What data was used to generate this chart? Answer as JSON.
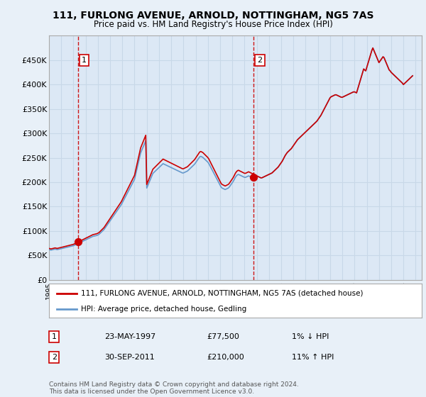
{
  "title": "111, FURLONG AVENUE, ARNOLD, NOTTINGHAM, NG5 7AS",
  "subtitle": "Price paid vs. HM Land Registry's House Price Index (HPI)",
  "background_color": "#e8f0f8",
  "plot_bg_color": "#dce8f5",
  "grid_color": "#c8d8e8",
  "hpi_line_color": "#6699cc",
  "price_line_color": "#cc0000",
  "marker_color": "#cc0000",
  "vline_color": "#cc0000",
  "sale1_year": 1997.38,
  "sale2_year": 2011.75,
  "sale1_price": 77500,
  "sale2_price": 210000,
  "ylim_min": 0,
  "ylim_max": 500000,
  "xlim_min": 1995,
  "xlim_max": 2025.5,
  "ytick_labels": [
    "£0",
    "£50K",
    "£100K",
    "£150K",
    "£200K",
    "£250K",
    "£300K",
    "£350K",
    "£400K",
    "£450K"
  ],
  "ytick_values": [
    0,
    50000,
    100000,
    150000,
    200000,
    250000,
    300000,
    350000,
    400000,
    450000
  ],
  "legend_line1": "111, FURLONG AVENUE, ARNOLD, NOTTINGHAM, NG5 7AS (detached house)",
  "legend_line2": "HPI: Average price, detached house, Gedling",
  "annotation1_label": "1",
  "annotation1_date": "23-MAY-1997",
  "annotation1_price": "£77,500",
  "annotation1_hpi": "1% ↓ HPI",
  "annotation2_label": "2",
  "annotation2_date": "30-SEP-2011",
  "annotation2_price": "£210,000",
  "annotation2_hpi": "11% ↑ HPI",
  "footer": "Contains HM Land Registry data © Crown copyright and database right 2024.\nThis data is licensed under the Open Government Licence v3.0.",
  "hpi_data_years": [
    1995.0,
    1995.083,
    1995.167,
    1995.25,
    1995.333,
    1995.417,
    1995.5,
    1995.583,
    1995.667,
    1995.75,
    1995.833,
    1995.917,
    1996.0,
    1996.083,
    1996.167,
    1996.25,
    1996.333,
    1996.417,
    1996.5,
    1996.583,
    1996.667,
    1996.75,
    1996.833,
    1996.917,
    1997.0,
    1997.083,
    1997.167,
    1997.25,
    1997.333,
    1997.417,
    1997.5,
    1997.583,
    1997.667,
    1997.75,
    1997.833,
    1997.917,
    1998.0,
    1998.083,
    1998.167,
    1998.25,
    1998.333,
    1998.417,
    1998.5,
    1998.583,
    1998.667,
    1998.75,
    1998.833,
    1998.917,
    1999.0,
    1999.083,
    1999.167,
    1999.25,
    1999.333,
    1999.417,
    1999.5,
    1999.583,
    1999.667,
    1999.75,
    1999.833,
    1999.917,
    2000.0,
    2000.083,
    2000.167,
    2000.25,
    2000.333,
    2000.417,
    2000.5,
    2000.583,
    2000.667,
    2000.75,
    2000.833,
    2000.917,
    2001.0,
    2001.083,
    2001.167,
    2001.25,
    2001.333,
    2001.417,
    2001.5,
    2001.583,
    2001.667,
    2001.75,
    2001.833,
    2001.917,
    2002.0,
    2002.083,
    2002.167,
    2002.25,
    2002.333,
    2002.417,
    2002.5,
    2002.583,
    2002.667,
    2002.75,
    2002.833,
    2002.917,
    2003.0,
    2003.083,
    2003.167,
    2003.25,
    2003.333,
    2003.417,
    2003.5,
    2003.583,
    2003.667,
    2003.75,
    2003.833,
    2003.917,
    2004.0,
    2004.083,
    2004.167,
    2004.25,
    2004.333,
    2004.417,
    2004.5,
    2004.583,
    2004.667,
    2004.75,
    2004.833,
    2004.917,
    2005.0,
    2005.083,
    2005.167,
    2005.25,
    2005.333,
    2005.417,
    2005.5,
    2005.583,
    2005.667,
    2005.75,
    2005.833,
    2005.917,
    2006.0,
    2006.083,
    2006.167,
    2006.25,
    2006.333,
    2006.417,
    2006.5,
    2006.583,
    2006.667,
    2006.75,
    2006.833,
    2006.917,
    2007.0,
    2007.083,
    2007.167,
    2007.25,
    2007.333,
    2007.417,
    2007.5,
    2007.583,
    2007.667,
    2007.75,
    2007.833,
    2007.917,
    2008.0,
    2008.083,
    2008.167,
    2008.25,
    2008.333,
    2008.417,
    2008.5,
    2008.583,
    2008.667,
    2008.75,
    2008.833,
    2008.917,
    2009.0,
    2009.083,
    2009.167,
    2009.25,
    2009.333,
    2009.417,
    2009.5,
    2009.583,
    2009.667,
    2009.75,
    2009.833,
    2009.917,
    2010.0,
    2010.083,
    2010.167,
    2010.25,
    2010.333,
    2010.417,
    2010.5,
    2010.583,
    2010.667,
    2010.75,
    2010.833,
    2010.917,
    2011.0,
    2011.083,
    2011.167,
    2011.25,
    2011.333,
    2011.417,
    2011.5,
    2011.583,
    2011.667,
    2011.75,
    2011.833,
    2011.917,
    2012.0,
    2012.083,
    2012.167,
    2012.25,
    2012.333,
    2012.417,
    2012.5,
    2012.583,
    2012.667,
    2012.75,
    2012.833,
    2012.917,
    2013.0,
    2013.083,
    2013.167,
    2013.25,
    2013.333,
    2013.417,
    2013.5,
    2013.583,
    2013.667,
    2013.75,
    2013.833,
    2013.917,
    2014.0,
    2014.083,
    2014.167,
    2014.25,
    2014.333,
    2014.417,
    2014.5,
    2014.583,
    2014.667,
    2014.75,
    2014.833,
    2014.917,
    2015.0,
    2015.083,
    2015.167,
    2015.25,
    2015.333,
    2015.417,
    2015.5,
    2015.583,
    2015.667,
    2015.75,
    2015.833,
    2015.917,
    2016.0,
    2016.083,
    2016.167,
    2016.25,
    2016.333,
    2016.417,
    2016.5,
    2016.583,
    2016.667,
    2016.75,
    2016.833,
    2016.917,
    2017.0,
    2017.083,
    2017.167,
    2017.25,
    2017.333,
    2017.417,
    2017.5,
    2017.583,
    2017.667,
    2017.75,
    2017.833,
    2017.917,
    2018.0,
    2018.083,
    2018.167,
    2018.25,
    2018.333,
    2018.417,
    2018.5,
    2018.583,
    2018.667,
    2018.75,
    2018.833,
    2018.917,
    2019.0,
    2019.083,
    2019.167,
    2019.25,
    2019.333,
    2019.417,
    2019.5,
    2019.583,
    2019.667,
    2019.75,
    2019.833,
    2019.917,
    2020.0,
    2020.083,
    2020.167,
    2020.25,
    2020.333,
    2020.417,
    2020.5,
    2020.583,
    2020.667,
    2020.75,
    2020.833,
    2020.917,
    2021.0,
    2021.083,
    2021.167,
    2021.25,
    2021.333,
    2021.417,
    2021.5,
    2021.583,
    2021.667,
    2021.75,
    2021.833,
    2021.917,
    2022.0,
    2022.083,
    2022.167,
    2022.25,
    2022.333,
    2022.417,
    2022.5,
    2022.583,
    2022.667,
    2022.75,
    2022.833,
    2022.917,
    2023.0,
    2023.083,
    2023.167,
    2023.25,
    2023.333,
    2023.417,
    2023.5,
    2023.583,
    2023.667,
    2023.75,
    2023.833,
    2023.917,
    2024.0,
    2024.083,
    2024.167,
    2024.25,
    2024.333,
    2024.417,
    2024.5,
    2024.583,
    2024.667,
    2024.75
  ],
  "hpi_data_values": [
    62000,
    61500,
    61000,
    61500,
    62000,
    62500,
    63000,
    62500,
    62000,
    62500,
    63000,
    63500,
    64000,
    64500,
    65000,
    65500,
    66000,
    66500,
    67000,
    67500,
    68000,
    68500,
    69000,
    69500,
    70000,
    71000,
    72000,
    73000,
    74000,
    75000,
    76000,
    77000,
    78000,
    79000,
    80000,
    81000,
    82000,
    83000,
    84000,
    85000,
    86000,
    87000,
    88000,
    89000,
    89500,
    90000,
    90500,
    91000,
    92000,
    93000,
    95000,
    97000,
    99000,
    101000,
    103000,
    106000,
    109000,
    112000,
    115000,
    118000,
    121000,
    124000,
    127000,
    130000,
    133000,
    136000,
    139000,
    142000,
    145000,
    148000,
    151000,
    154000,
    158000,
    162000,
    166000,
    170000,
    174000,
    178000,
    182000,
    186000,
    190000,
    194000,
    198000,
    202000,
    206000,
    215000,
    224000,
    233000,
    242000,
    251000,
    260000,
    265000,
    270000,
    275000,
    280000,
    285000,
    188000,
    193000,
    198000,
    203000,
    208000,
    213000,
    218000,
    220000,
    222000,
    224000,
    226000,
    228000,
    230000,
    232000,
    234000,
    236000,
    238000,
    237000,
    236000,
    235000,
    234000,
    233000,
    232000,
    231000,
    230000,
    229000,
    228000,
    227000,
    226000,
    225000,
    224000,
    223000,
    222000,
    221000,
    220000,
    219000,
    219000,
    220000,
    221000,
    222000,
    223000,
    225000,
    227000,
    229000,
    231000,
    233000,
    235000,
    237000,
    240000,
    243000,
    246000,
    249000,
    252000,
    253000,
    252000,
    251000,
    249000,
    247000,
    245000,
    243000,
    241000,
    238000,
    234000,
    230000,
    226000,
    222000,
    218000,
    214000,
    210000,
    206000,
    202000,
    198000,
    194000,
    190000,
    188000,
    187000,
    186000,
    185000,
    186000,
    187000,
    188000,
    190000,
    193000,
    196000,
    199000,
    202000,
    206000,
    210000,
    213000,
    215000,
    216000,
    215000,
    214000,
    213000,
    212000,
    211000,
    210000,
    210000,
    211000,
    212000,
    213000,
    212000,
    211000,
    210000,
    209000,
    210000,
    211000,
    212000,
    213000,
    212000,
    211000,
    210000,
    209000,
    209000,
    210000,
    211000,
    212000,
    213000,
    214000,
    215000,
    216000,
    217000,
    218000,
    219000,
    221000,
    223000,
    225000,
    227000,
    229000,
    231000,
    234000,
    237000,
    240000,
    243000,
    247000,
    251000,
    255000,
    258000,
    261000,
    263000,
    265000,
    267000,
    269000,
    272000,
    275000,
    278000,
    281000,
    284000,
    287000,
    289000,
    291000,
    293000,
    295000,
    297000,
    299000,
    301000,
    303000,
    305000,
    307000,
    309000,
    311000,
    313000,
    315000,
    317000,
    319000,
    321000,
    323000,
    325000,
    328000,
    331000,
    334000,
    337000,
    341000,
    345000,
    349000,
    353000,
    357000,
    361000,
    365000,
    369000,
    373000,
    375000,
    376000,
    377000,
    378000,
    379000,
    379000,
    378000,
    377000,
    376000,
    375000,
    374000,
    374000,
    375000,
    376000,
    377000,
    378000,
    379000,
    380000,
    381000,
    382000,
    383000,
    384000,
    385000,
    385000,
    384000,
    383000,
    390000,
    397000,
    404000,
    411000,
    418000,
    425000,
    432000,
    430000,
    428000,
    435000,
    442000,
    449000,
    456000,
    463000,
    470000,
    475000,
    470000,
    465000,
    460000,
    455000,
    450000,
    445000,
    448000,
    451000,
    454000,
    457000,
    455000,
    450000,
    445000,
    440000,
    435000,
    430000,
    428000,
    425000,
    423000,
    421000,
    419000,
    417000,
    415000,
    413000,
    411000,
    409000,
    407000,
    405000,
    403000,
    400000,
    402000,
    404000,
    406000,
    408000,
    410000,
    412000,
    414000,
    416000,
    418000
  ]
}
